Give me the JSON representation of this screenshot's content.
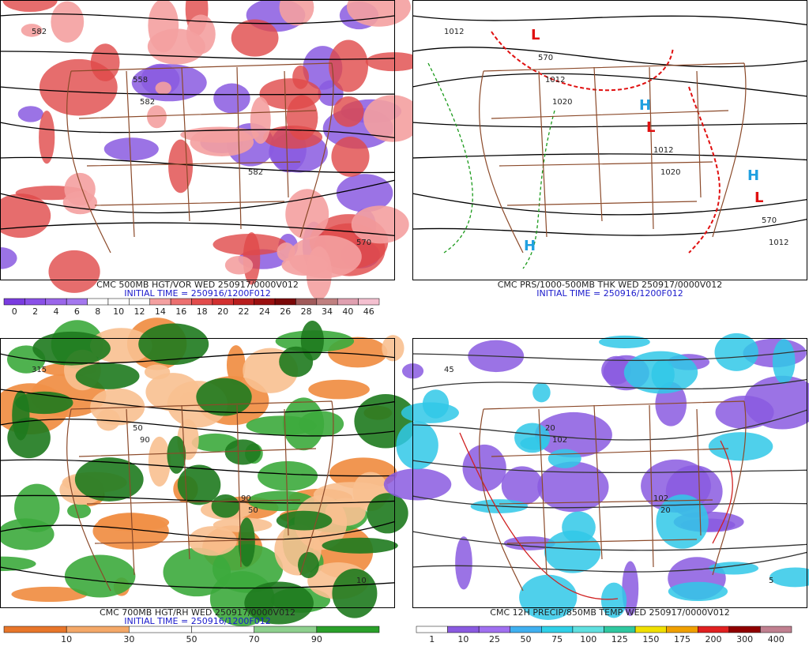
{
  "panels": [
    {
      "title": "CMC 500MB HGT/VOR WED 250917/0000V012",
      "initial_time": "INITIAL TIME = 250916/1200F012",
      "legend": [
        0,
        2,
        4,
        6,
        8,
        10,
        12,
        14,
        16,
        18,
        20,
        22,
        24,
        26,
        28,
        34,
        40,
        46
      ],
      "map_labels": [
        "582",
        "582",
        "582",
        "570",
        "558"
      ]
    },
    {
      "title": "CMC PRS/1000-500MB THK WED 250917/0000V012",
      "initial_time": "INITIAL TIME = 250916/1200F012",
      "map_labels": [
        "1012",
        "1020",
        "1020",
        "1012",
        "1012",
        "1012",
        "570",
        "570",
        "L",
        "L",
        "L",
        "H",
        "H",
        "H"
      ]
    },
    {
      "title": "CMC 700MB HGT/RH WED 250917/0000V012",
      "initial_time": "INITIAL TIME = 250916/1200F012",
      "legend": [
        10,
        30,
        50,
        70,
        90
      ],
      "map_labels": [
        "315",
        "90",
        "50",
        "10",
        "50",
        "90"
      ]
    },
    {
      "title": "CMC 12H PRECIP/850MB TEMP WED 250917/0000V012",
      "legend": [
        1,
        10,
        25,
        50,
        75,
        100,
        125,
        150,
        175,
        200,
        300,
        400
      ],
      "map_labels": [
        "45",
        "102",
        "20",
        "5",
        "20",
        "102"
      ]
    }
  ]
}
